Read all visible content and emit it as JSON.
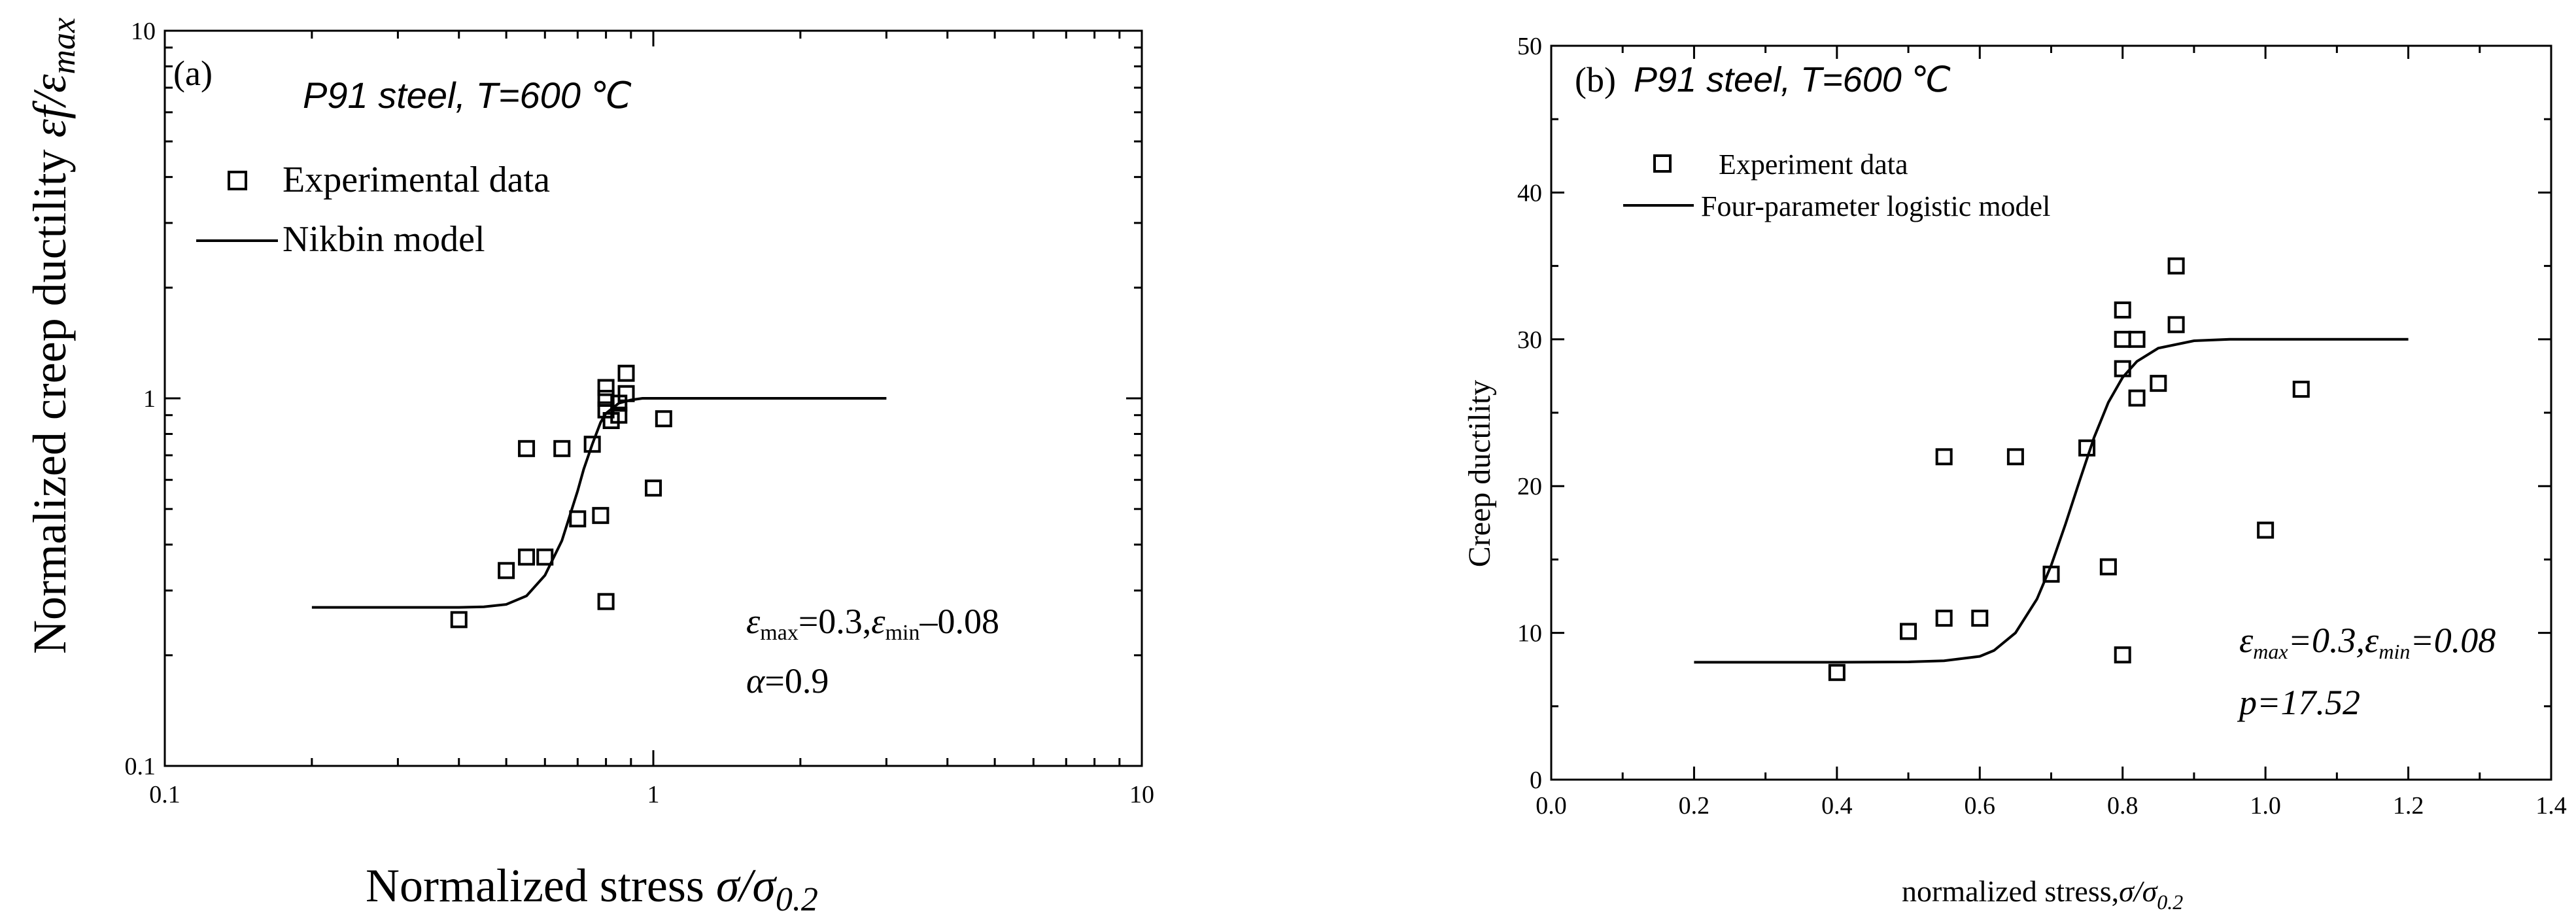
{
  "chart_data": [
    {
      "type": "scatter",
      "panel_label": "(a)",
      "title": "P91 steel, T=600 ℃",
      "xlabel": "Normalized stress σ/σ0.2",
      "ylabel": "Normalized creep ductility εf/εmax",
      "xscale": "log",
      "yscale": "log",
      "xlim": [
        0.1,
        10
      ],
      "ylim": [
        0.1,
        10
      ],
      "xticks": [
        "0.1",
        "1",
        "10"
      ],
      "yticks": [
        "0.1",
        "1",
        "10"
      ],
      "legend": [
        "Experimental data",
        "Nikbin model"
      ],
      "legend_position": "top-left",
      "annotations": [
        "εmax=0.3,εmin–0.08",
        "α=0.9"
      ],
      "series": [
        {
          "name": "Experimental data",
          "kind": "scatter",
          "marker": "open-square",
          "x": [
            0.4,
            0.5,
            0.55,
            0.55,
            0.6,
            0.65,
            0.7,
            0.75,
            0.78,
            0.8,
            0.8,
            0.8,
            0.8,
            0.82,
            0.85,
            0.85,
            0.88,
            0.88,
            1.0,
            1.05
          ],
          "y": [
            0.25,
            0.34,
            0.37,
            0.73,
            0.37,
            0.73,
            0.47,
            0.75,
            0.48,
            0.28,
            0.93,
            1.0,
            1.07,
            0.87,
            0.9,
            0.97,
            1.03,
            1.17,
            0.57,
            0.88
          ]
        },
        {
          "name": "Nikbin model",
          "kind": "line",
          "x": [
            0.2,
            0.3,
            0.4,
            0.45,
            0.5,
            0.55,
            0.6,
            0.65,
            0.7,
            0.72,
            0.75,
            0.78,
            0.8,
            0.85,
            0.9,
            0.95,
            1.0,
            1.2,
            1.5,
            2.0,
            3.0
          ],
          "y": [
            0.27,
            0.27,
            0.27,
            0.271,
            0.275,
            0.29,
            0.33,
            0.41,
            0.56,
            0.64,
            0.75,
            0.86,
            0.91,
            0.97,
            0.99,
            1.0,
            1.0,
            1.0,
            1.0,
            1.0,
            1.0
          ]
        }
      ]
    },
    {
      "type": "scatter",
      "panel_label": "(b)",
      "title": "P91 steel, T=600 ℃",
      "xlabel": "normalized stress,σ/σ0.2",
      "ylabel": "Creep ductility",
      "xlim": [
        0.0,
        1.4
      ],
      "ylim": [
        0,
        50
      ],
      "xticks": [
        "0.0",
        "0.2",
        "0.4",
        "0.6",
        "0.8",
        "1.0",
        "1.2",
        "1.4"
      ],
      "yticks": [
        "0",
        "10",
        "20",
        "30",
        "40",
        "50"
      ],
      "legend": [
        "Experiment data",
        "Four-parameter logistic model"
      ],
      "legend_position": "top-left",
      "annotations": [
        "εmax=0.3,εmin=0.08",
        "p=17.52"
      ],
      "series": [
        {
          "name": "Experiment data",
          "kind": "scatter",
          "marker": "open-square",
          "x": [
            0.4,
            0.5,
            0.55,
            0.55,
            0.6,
            0.65,
            0.7,
            0.75,
            0.78,
            0.8,
            0.8,
            0.8,
            0.8,
            0.82,
            0.82,
            0.85,
            0.875,
            0.875,
            1.0,
            1.05
          ],
          "y": [
            7.3,
            10.1,
            11.0,
            22.0,
            11.0,
            22.0,
            14.0,
            22.6,
            14.5,
            8.5,
            28.0,
            30.0,
            32.0,
            26.0,
            30.0,
            27.0,
            31.0,
            35.0,
            17.0,
            26.6
          ]
        },
        {
          "name": "Four-parameter logistic model",
          "kind": "line",
          "x": [
            0.2,
            0.3,
            0.4,
            0.5,
            0.55,
            0.6,
            0.62,
            0.65,
            0.68,
            0.7,
            0.72,
            0.74,
            0.76,
            0.78,
            0.8,
            0.82,
            0.85,
            0.9,
            0.95,
            1.0,
            1.1,
            1.2
          ],
          "y": [
            8.0,
            8.0,
            8.0,
            8.02,
            8.1,
            8.4,
            8.8,
            10.0,
            12.3,
            14.6,
            17.4,
            20.4,
            23.3,
            25.7,
            27.4,
            28.5,
            29.4,
            29.9,
            30.0,
            30.0,
            30.0,
            30.0
          ]
        }
      ]
    }
  ]
}
